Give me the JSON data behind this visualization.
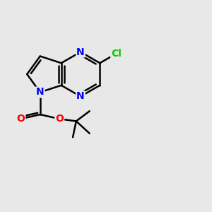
{
  "bg_color": "#e8e8e8",
  "bond_color": "#000000",
  "nitrogen_color": "#0000ff",
  "oxygen_color": "#ff0000",
  "chlorine_color": "#00cc00",
  "bond_width": 1.8,
  "fig_width": 3.0,
  "fig_height": 3.0,
  "dpi": 100,
  "xlim": [
    0,
    10
  ],
  "ylim": [
    0,
    10
  ],
  "font_size": 10
}
